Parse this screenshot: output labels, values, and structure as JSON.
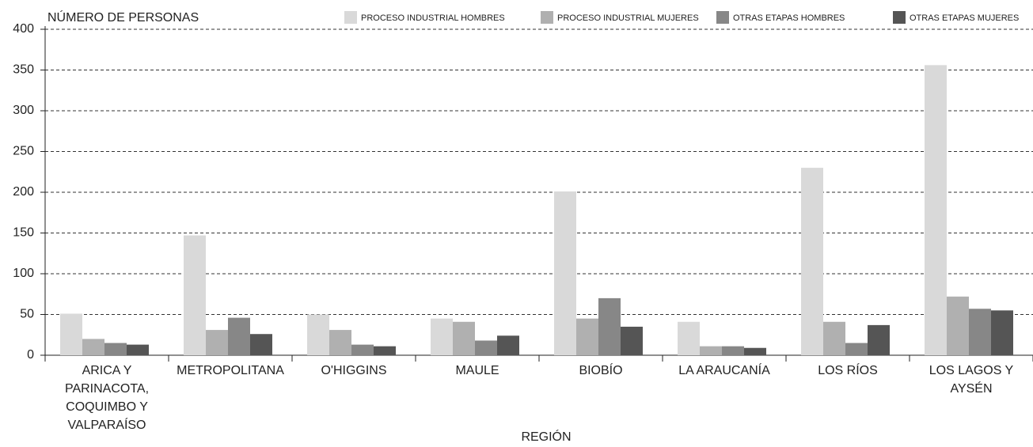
{
  "chart_data": {
    "type": "bar",
    "y_label": "NÚMERO DE PERSONAS",
    "x_label": "REGIÓN",
    "categories": [
      "ARICA Y PARINACOTA, COQUIMBO Y VALPARAÍSO",
      "METROPOLITANA",
      "O'HIGGINS",
      "MAULE",
      "BIOBÍO",
      "LA ARAUCANÍA",
      "LOS RÍOS",
      "LOS LAGOS Y AYSÉN"
    ],
    "series": [
      {
        "name": "PROCESO INDUSTRIAL HOMBRES",
        "color": "#d9d9d9",
        "values": [
          51,
          147,
          50,
          45,
          201,
          41,
          230,
          356
        ]
      },
      {
        "name": "PROCESO INDUSTRIAL MUJERES",
        "color": "#b0b0b0",
        "values": [
          20,
          31,
          31,
          41,
          45,
          11,
          41,
          72
        ]
      },
      {
        "name": "OTRAS ETAPAS HOMBRES",
        "color": "#878787",
        "values": [
          15,
          46,
          13,
          18,
          70,
          11,
          15,
          57
        ]
      },
      {
        "name": "OTRAS ETAPAS MUJERES",
        "color": "#555555",
        "values": [
          13,
          26,
          11,
          24,
          35,
          9,
          37,
          55
        ]
      }
    ],
    "ylim": [
      0,
      400
    ],
    "yticks": [
      0,
      50,
      100,
      150,
      200,
      250,
      300,
      350,
      400
    ],
    "grid": true,
    "legend": "top-right"
  }
}
